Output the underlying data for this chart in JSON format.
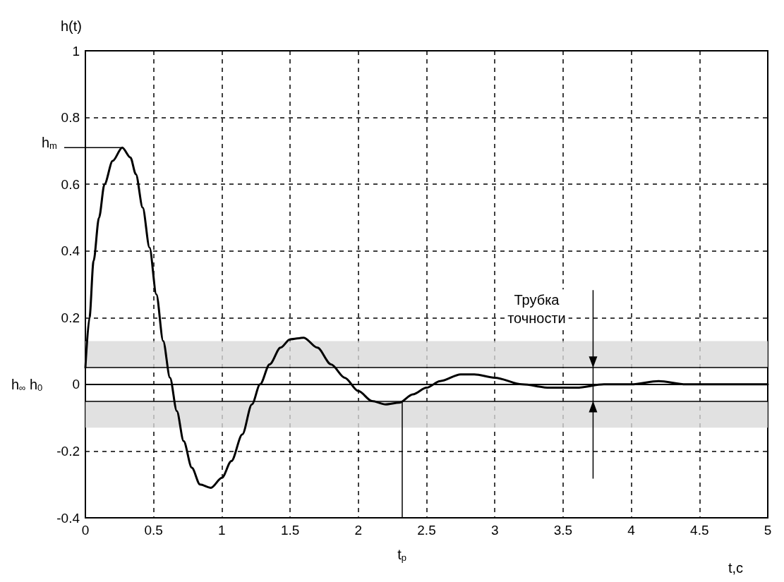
{
  "chart_data": {
    "type": "line",
    "xlabel": "t,c",
    "ylabel": "h(t)",
    "xlim": [
      0,
      5
    ],
    "xticks": [
      0,
      0.5,
      1,
      1.5,
      2,
      2.5,
      3,
      3.5,
      4,
      4.5,
      5
    ],
    "ylim": [
      -0.4,
      1
    ],
    "yticks": [
      -0.4,
      -0.2,
      0,
      0.2,
      0.4,
      0.6,
      0.8,
      1
    ],
    "grid": true,
    "line_style": "solid",
    "marker": "none",
    "series": [
      {
        "color": "#000000",
        "x": [
          0,
          0.03,
          0.06,
          0.1,
          0.14,
          0.2,
          0.27,
          0.33,
          0.37,
          0.42,
          0.47,
          0.52,
          0.57,
          0.62,
          0.67,
          0.72,
          0.78,
          0.84,
          0.92,
          1.0,
          1.07,
          1.15,
          1.22,
          1.28,
          1.35,
          1.43,
          1.5,
          1.6,
          1.7,
          1.8,
          1.9,
          2.0,
          2.1,
          2.2,
          2.3,
          2.4,
          2.5,
          2.6,
          2.75,
          2.85,
          3.0,
          3.2,
          3.4,
          3.6,
          3.8,
          4.0,
          4.2,
          4.4,
          4.5,
          5
        ],
        "values": [
          0.05,
          0.2,
          0.37,
          0.5,
          0.6,
          0.67,
          0.71,
          0.68,
          0.63,
          0.53,
          0.41,
          0.27,
          0.13,
          0.02,
          -0.08,
          -0.17,
          -0.25,
          -0.3,
          -0.31,
          -0.28,
          -0.23,
          -0.15,
          -0.06,
          0.0,
          0.06,
          0.11,
          0.135,
          0.14,
          0.11,
          0.06,
          0.02,
          -0.02,
          -0.05,
          -0.06,
          -0.055,
          -0.03,
          -0.01,
          0.01,
          0.03,
          0.03,
          0.02,
          0.0,
          -0.01,
          -0.01,
          0.0,
          0.0,
          0.01,
          0.0,
          0.0,
          0.0
        ]
      }
    ],
    "ref_lines": [
      {
        "axis": "y",
        "value": 0.05,
        "color": "#000000"
      },
      {
        "axis": "y",
        "value": -0.05,
        "color": "#000000"
      },
      {
        "axis": "x",
        "value": 2.32,
        "label": "t$_{p}$",
        "color": "#000000"
      }
    ],
    "bands": [
      {
        "axis": "y",
        "from": 0.05,
        "to": 0.13,
        "color": "#d9d9d9"
      },
      {
        "axis": "y",
        "from": -0.13,
        "to": -0.05,
        "color": "#d9d9d9"
      }
    ],
    "annotations": [
      "h$_{m}$",
      "h$_{∞}$ h$_{0}$",
      "Трубка\nточности"
    ]
  }
}
